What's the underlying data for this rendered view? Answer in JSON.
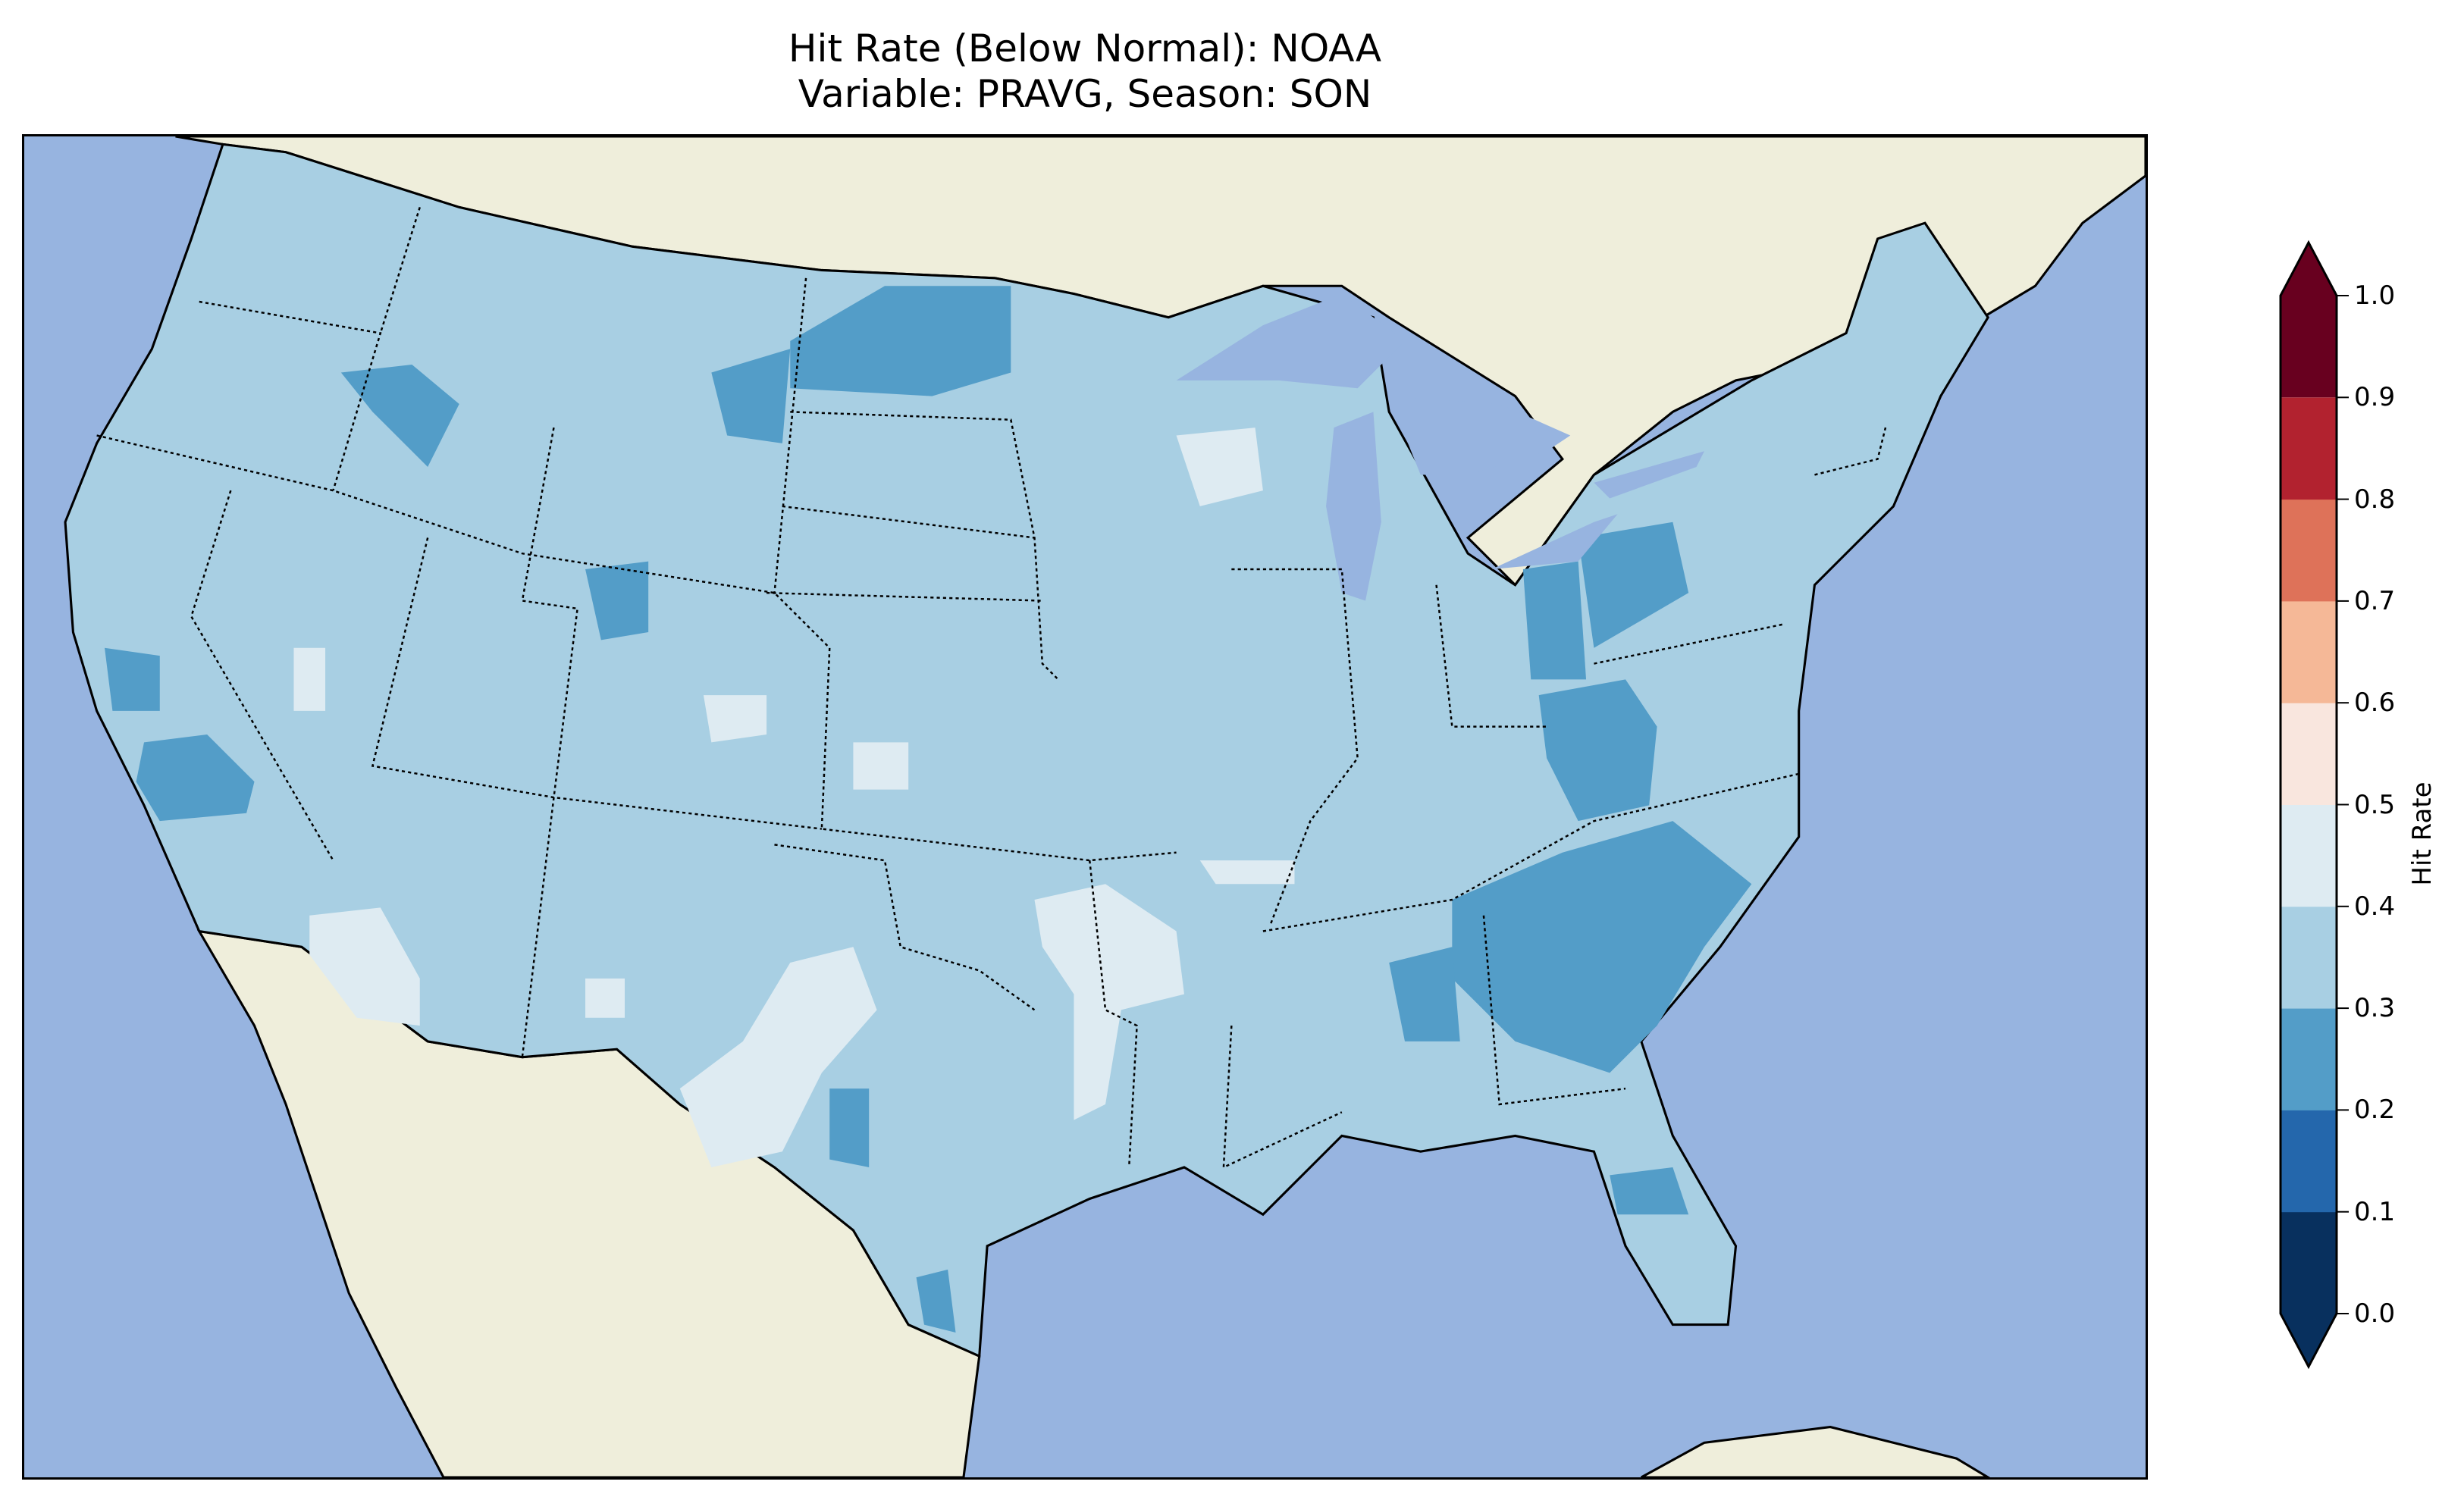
{
  "chart_data": {
    "type": "heatmap",
    "title": "Hit Rate (Below Normal): NOAA",
    "subtitle": "Variable: PRAVG, Season: SON",
    "region": "Contiguous United States",
    "colorbar": {
      "label": "Hit Rate",
      "range": [
        0.0,
        1.0
      ],
      "extend": "both",
      "ticks": [
        "0.0",
        "0.1",
        "0.2",
        "0.3",
        "0.4",
        "0.5",
        "0.6",
        "0.7",
        "0.8",
        "0.9",
        "1.0"
      ],
      "levels": [
        0.0,
        0.1,
        0.2,
        0.3,
        0.4,
        0.5,
        0.6,
        0.7,
        0.8,
        0.9,
        1.0
      ],
      "colors": [
        "#08305e",
        "#2467ac",
        "#539dc8",
        "#a8cfe3",
        "#deebf2",
        "#f9e6de",
        "#f5b897",
        "#de7259",
        "#b2222f",
        "#68001f"
      ]
    },
    "dominant_value_range": [
      0.3,
      0.4
    ],
    "lower_value_regions_range": [
      0.2,
      0.3
    ],
    "higher_value_regions_range": [
      0.4,
      0.5
    ],
    "map_colors": {
      "ocean": "#97b4e0",
      "land": "#efeedb"
    }
  }
}
